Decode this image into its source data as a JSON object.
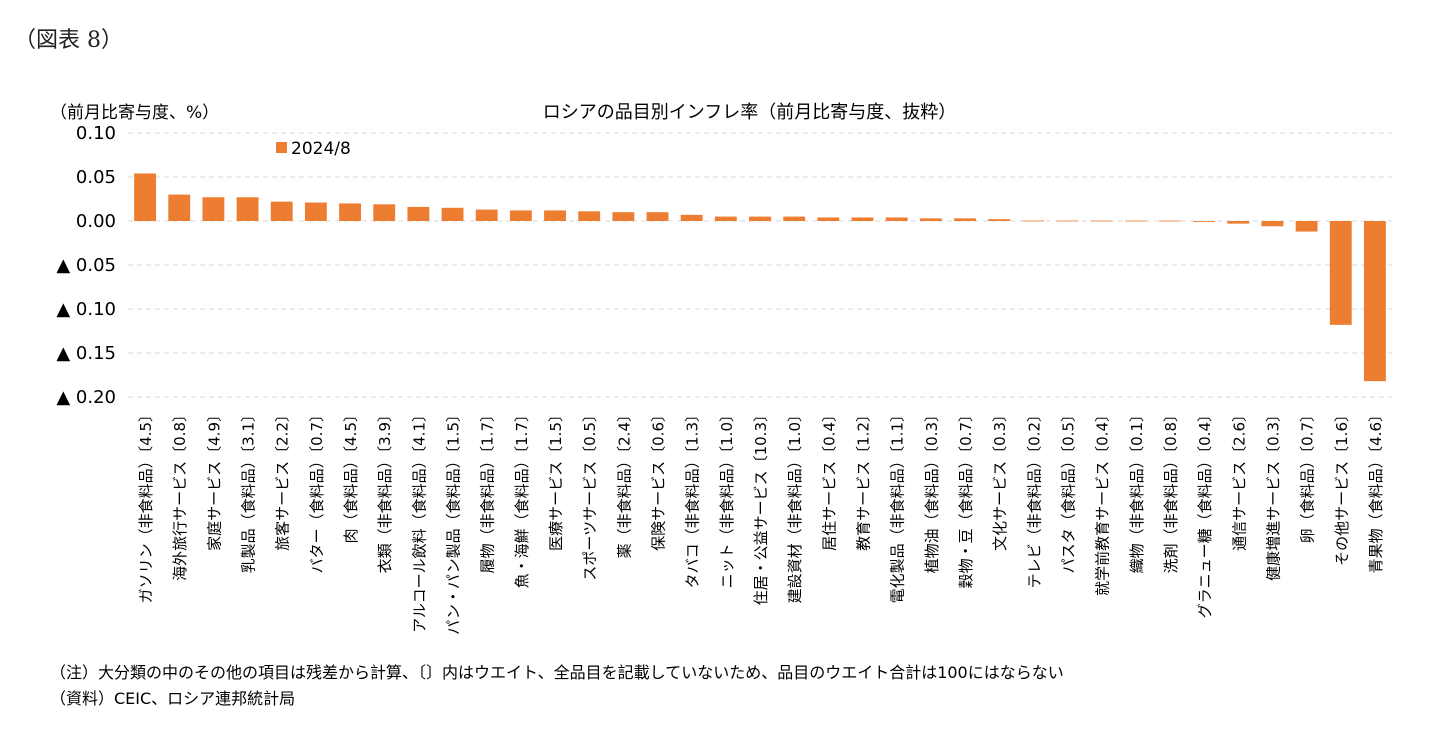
{
  "figure_label": "（図表 8）",
  "unit_label": "（前月比寄与度、%）",
  "notes": [
    "（注）大分類の中のその他の項目は残差から計算、〔〕内はウエイト、全品目を記載していないため、品目のウエイト合計は100にはならない",
    "（資料）CEIC、ロシア連邦統計局"
  ],
  "colors": {
    "bar": "#ED7D31",
    "grid": "#D9D9D9"
  },
  "chart_data": {
    "type": "bar",
    "title": "ロシアの品目別インフレ率（前月比寄与度、抜粋）",
    "legend": "top-left",
    "grid": true,
    "ylim": [
      -0.2,
      0.1
    ],
    "yticks": [
      0.1,
      0.05,
      0.0,
      -0.05,
      -0.1,
      -0.15,
      -0.2
    ],
    "ytick_labels": [
      "0.10",
      "0.05",
      "0.00",
      "▲ 0.05",
      "▲ 0.10",
      "▲ 0.15",
      "▲ 0.20"
    ],
    "categories": [
      "ガソリン（非食料品）〔4.5〕",
      "海外旅行サービス〔0.8〕",
      "家庭サービス〔4.9〕",
      "乳製品（食料品）〔3.1〕",
      "旅客サービス〔2.2〕",
      "バター（食料品）〔0.7〕",
      "肉（食料品）〔4.5〕",
      "衣類（非食料品）〔3.9〕",
      "アルコール飲料（食料品）〔4.1〕",
      "パン・パン製品（食料品）〔1.5〕",
      "履物（非食料品）〔1.7〕",
      "魚・海鮮（食料品）〔1.7〕",
      "医療サービス〔1.5〕",
      "スポーツサービス〔0.5〕",
      "薬（非食料品）〔2.4〕",
      "保険サービス〔0.6〕",
      "タバコ（非食料品）〔1.3〕",
      "ニット（非食料品）〔1.0〕",
      "住居・公益サービス〔10.3〕",
      "建設資材（非食料品）〔1.0〕",
      "居住サービス〔0.4〕",
      "教育サービス〔1.2〕",
      "電化製品（非食料品）〔1.1〕",
      "植物油（食料品）〔0.3〕",
      "穀物・豆（食料品）〔0.7〕",
      "文化サービス〔0.3〕",
      "テレビ（非食料品）〔0.2〕",
      "パスタ（食料品）〔0.5〕",
      "就学前教育サービス〔0.4〕",
      "織物（非食料品）〔0.1〕",
      "洗剤（非食料品）〔0.8〕",
      "グラニュー糖（食料品）〔0.4〕",
      "通信サービス〔2.6〕",
      "健康増進サービス〔0.3〕",
      "卵（食料品）〔0.7〕",
      "その他サービス〔1.6〕",
      "青果物（食料品）〔4.6〕"
    ],
    "series": [
      {
        "name": "2024/8",
        "values": [
          0.054,
          0.03,
          0.027,
          0.027,
          0.022,
          0.021,
          0.02,
          0.019,
          0.016,
          0.015,
          0.013,
          0.012,
          0.012,
          0.011,
          0.01,
          0.01,
          0.007,
          0.005,
          0.005,
          0.005,
          0.004,
          0.004,
          0.004,
          0.003,
          0.003,
          0.002,
          0.0005,
          0.0005,
          0.0005,
          0.0005,
          0.0005,
          -0.001,
          -0.003,
          -0.006,
          -0.012,
          -0.118,
          -0.182
        ]
      }
    ]
  }
}
